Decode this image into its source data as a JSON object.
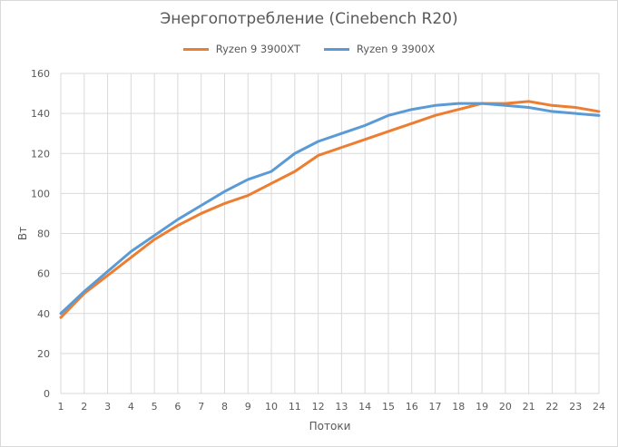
{
  "chart_data": {
    "type": "line",
    "title": "Энергопотребление (Cinebench R20)",
    "xlabel": "Потоки",
    "ylabel": "Вт",
    "x": [
      1,
      2,
      3,
      4,
      5,
      6,
      7,
      8,
      9,
      10,
      11,
      12,
      13,
      14,
      15,
      16,
      17,
      18,
      19,
      20,
      21,
      22,
      23,
      24
    ],
    "ylim": [
      0,
      160
    ],
    "yticks": [
      0,
      20,
      40,
      60,
      80,
      100,
      120,
      140,
      160
    ],
    "grid": true,
    "legend_position": "top",
    "series": [
      {
        "name": "Ryzen 9 3900XT",
        "color": "#ed7d31",
        "values": [
          38,
          50,
          59,
          68,
          77,
          84,
          90,
          95,
          99,
          105,
          111,
          119,
          123,
          127,
          131,
          135,
          139,
          142,
          145,
          145,
          146,
          144,
          143,
          141
        ]
      },
      {
        "name": "Ryzen 9 3900X",
        "color": "#5b9bd5",
        "values": [
          40,
          51,
          61,
          71,
          79,
          87,
          94,
          101,
          107,
          111,
          120,
          126,
          130,
          134,
          139,
          142,
          144,
          145,
          145,
          144,
          143,
          141,
          140,
          139
        ]
      }
    ]
  }
}
